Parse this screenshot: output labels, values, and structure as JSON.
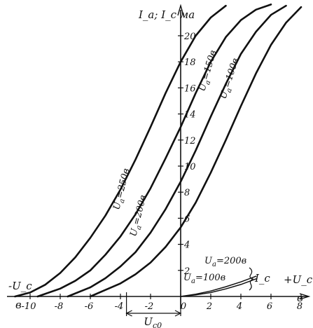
{
  "chart_data": {
    "type": "line",
    "title": "",
    "ylabel": "I_a; I_c ма",
    "xlabel_right": "+U_c",
    "xlabel_right_unit": "в",
    "xlabel_left": "-U_c",
    "xlabel_left_unit": "в",
    "xlim": [
      -12,
      9
    ],
    "ylim": [
      0,
      22
    ],
    "x_ticks": [
      -10,
      -8,
      -6,
      -4,
      -2,
      0,
      2,
      4,
      6,
      8
    ],
    "x_tick_labels": [
      "-10",
      "-8",
      "-6",
      "-4",
      "-2",
      "0",
      "2",
      "4",
      "6",
      "8"
    ],
    "y_ticks": [
      2,
      4,
      6,
      8,
      10,
      12,
      14,
      16,
      18,
      20
    ],
    "y_tick_labels": [
      "2",
      "4",
      "6",
      "8",
      "10",
      "12",
      "14",
      "16",
      "18",
      "20"
    ],
    "annotation_uc0": "U_c0",
    "annotation_ic": "I_c",
    "series": [
      {
        "name": "U_a=250в",
        "label_main": "U",
        "label_sub": "a",
        "label_rest": "=250в",
        "x": [
          -11,
          -10,
          -9,
          -8,
          -7,
          -6,
          -5,
          -4,
          -3,
          -2,
          -1,
          0,
          1,
          2,
          3
        ],
        "y": [
          0,
          0.3,
          0.9,
          1.8,
          3.0,
          4.5,
          6.2,
          8.2,
          10.5,
          13.0,
          15.6,
          18.0,
          20.0,
          21.4,
          22.3
        ]
      },
      {
        "name": "U_a=200в",
        "label_main": "U",
        "label_sub": "a",
        "label_rest": "=200в",
        "x": [
          -9.5,
          -8,
          -7,
          -6,
          -5,
          -4,
          -3,
          -2,
          -1,
          0,
          1,
          2,
          3,
          4,
          5,
          6
        ],
        "y": [
          0,
          0.6,
          1.2,
          2.0,
          3.2,
          4.6,
          6.3,
          8.3,
          10.6,
          13.0,
          15.6,
          18.0,
          19.9,
          21.2,
          22.0,
          22.4
        ]
      },
      {
        "name": "U_a=150в",
        "label_main": "U",
        "label_sub": "a",
        "label_rest": "=150в",
        "x": [
          -7.5,
          -6,
          -5,
          -4,
          -3,
          -2,
          -1,
          0,
          1,
          2,
          3,
          4,
          5,
          6,
          7
        ],
        "y": [
          0,
          0.7,
          1.4,
          2.3,
          3.4,
          4.9,
          6.7,
          8.8,
          11.2,
          13.8,
          16.3,
          18.6,
          20.3,
          21.6,
          22.3
        ]
      },
      {
        "name": "U_a=100в",
        "label_main": "U",
        "label_sub": "a",
        "label_rest": "=100в",
        "x": [
          -6,
          -5,
          -4,
          -3,
          -2,
          -1,
          0,
          1,
          2,
          3,
          4,
          5,
          6,
          7,
          8
        ],
        "y": [
          0,
          0.5,
          1.0,
          1.7,
          2.6,
          3.8,
          5.3,
          7.2,
          9.5,
          12.0,
          14.6,
          17.1,
          19.3,
          21.0,
          22.2
        ]
      },
      {
        "name": "I_c U_a=200в",
        "label_main": "U",
        "label_sub": "a",
        "label_rest": "=200в",
        "x": [
          0,
          1,
          2,
          3,
          4,
          5
        ],
        "y": [
          0,
          0.12,
          0.3,
          0.58,
          0.92,
          1.35
        ]
      },
      {
        "name": "I_c U_a=100в",
        "label_main": "U",
        "label_sub": "a",
        "label_rest": "=100в",
        "x": [
          0,
          1,
          2,
          3,
          4,
          5
        ],
        "y": [
          0,
          0.18,
          0.42,
          0.75,
          1.12,
          1.55
        ]
      }
    ]
  }
}
